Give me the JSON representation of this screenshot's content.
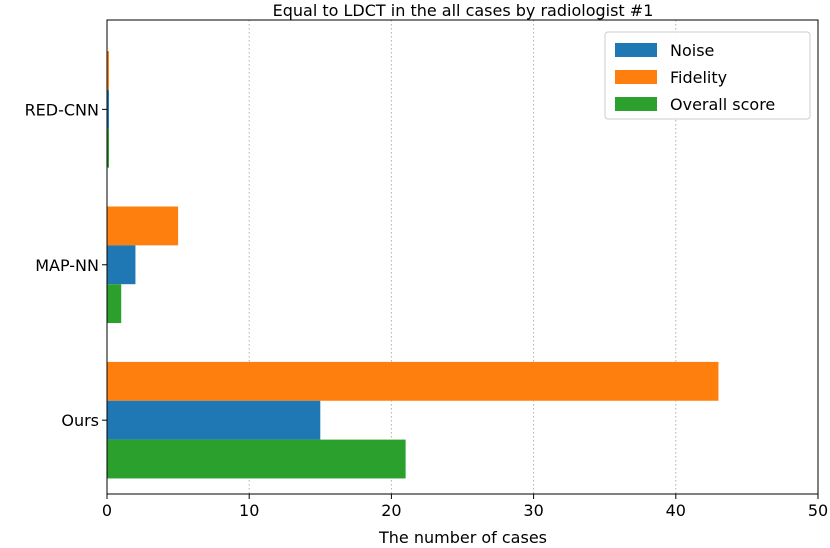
{
  "chart_data": {
    "type": "bar",
    "orientation": "horizontal",
    "title": "Equal to LDCT in the all cases by radiologist #1",
    "xlabel": "The number of cases",
    "ylabel": "",
    "xlim": [
      0,
      50
    ],
    "xticks": [
      "0",
      "10",
      "20",
      "30",
      "40",
      "50"
    ],
    "categories": [
      "RED-CNN",
      "MAP-NN",
      "Ours"
    ],
    "series": [
      {
        "name": "Noise",
        "color": "#1f77b4",
        "values": [
          0,
          2,
          15
        ]
      },
      {
        "name": "Fidelity",
        "color": "#ff7f0e",
        "values": [
          0,
          5,
          43
        ]
      },
      {
        "name": "Overall score",
        "color": "#2ca02c",
        "values": [
          0,
          1,
          21
        ]
      }
    ],
    "grid": "x-dotted",
    "legend_position": "top-right"
  }
}
